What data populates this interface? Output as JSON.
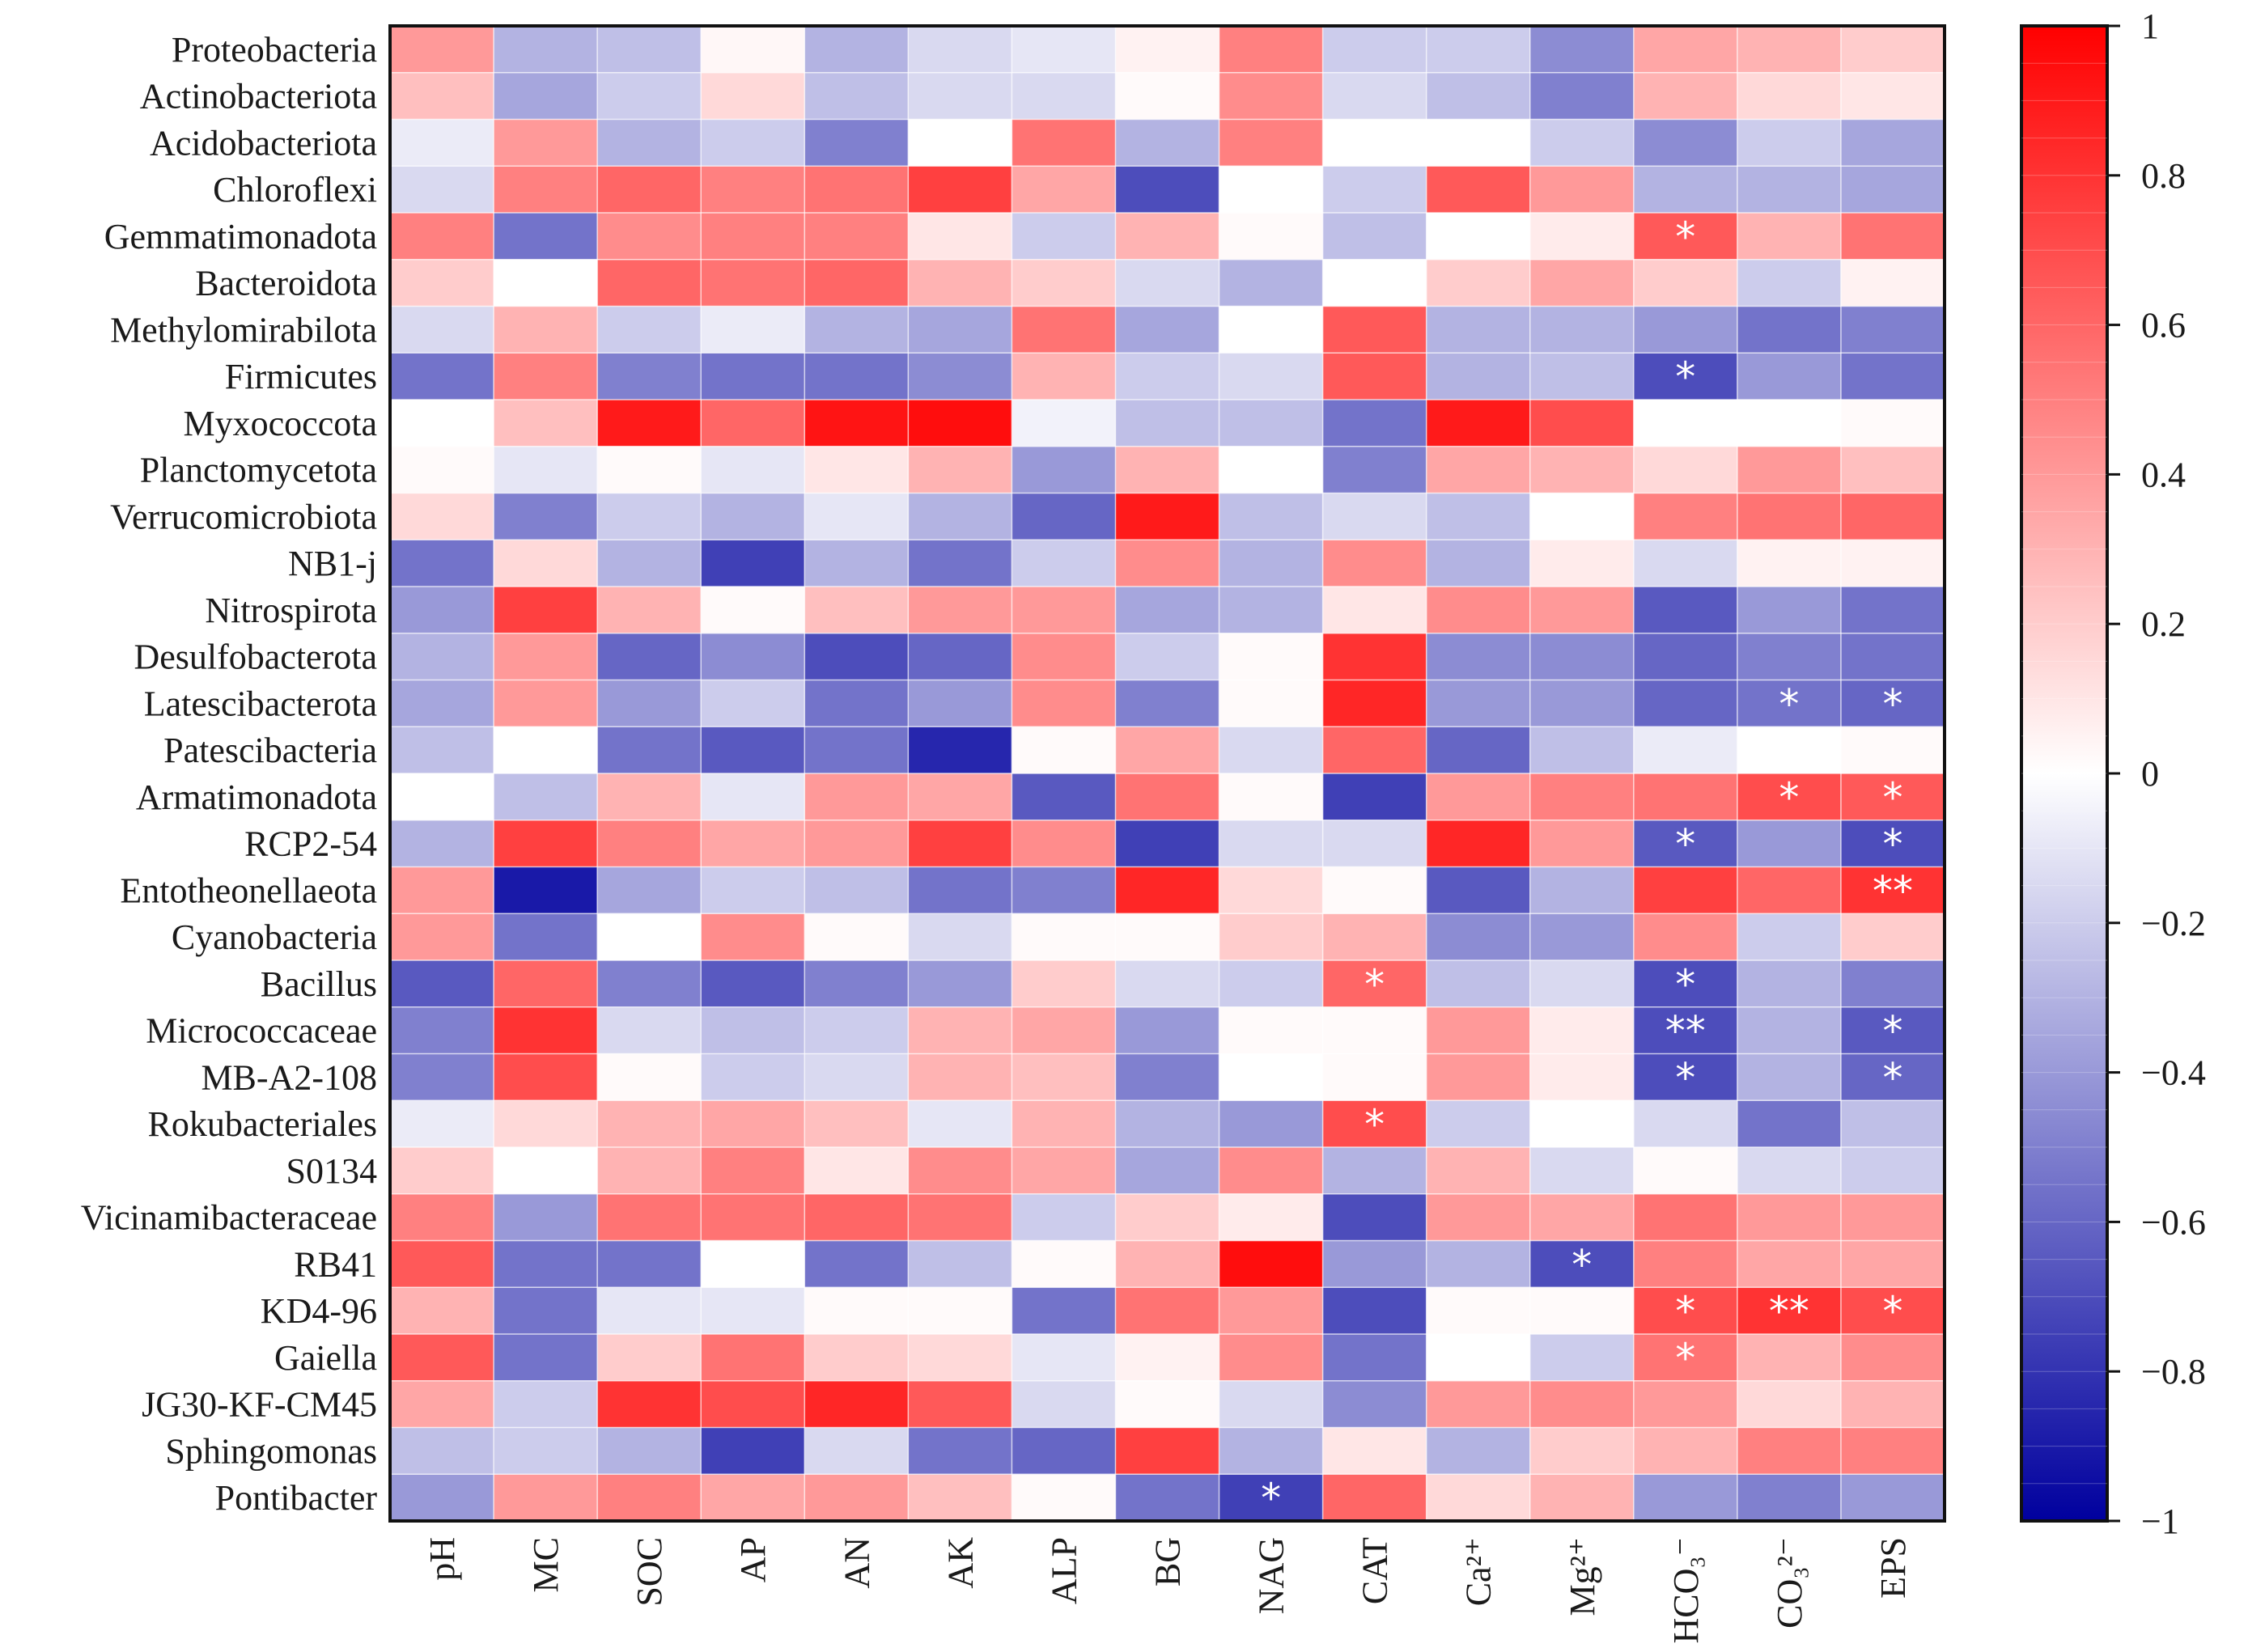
{
  "chart_data": {
    "type": "heatmap",
    "title": "",
    "rows": [
      "Proteobacteria",
      "Actinobacteriota",
      "Acidobacteriota",
      "Chloroflexi",
      "Gemmatimonadota",
      "Bacteroidota",
      "Methylomirabilota",
      "Firmicutes",
      "Myxococcota",
      "Planctomycetota",
      "Verrucomicrobiota",
      "NB1-j",
      "Nitrospirota",
      "Desulfobacterota",
      "Latescibacterota",
      "Patescibacteria",
      "Armatimonadota",
      "RCP2-54",
      "Entotheonellaeota",
      "Cyanobacteria",
      "Bacillus",
      "Micrococcaceae",
      "MB-A2-108",
      "Rokubacteriales",
      "S0134",
      "Vicinamibacteraceae",
      "RB41",
      "KD4-96",
      "Gaiella",
      "JG30-KF-CM45",
      "Sphingomonas",
      "Pontibacter"
    ],
    "columns": [
      "pH",
      "MC",
      "SOC",
      "AP",
      "AN",
      "AK",
      "ALP",
      "BG",
      "NAG",
      "CAT",
      "Ca²⁺",
      "Mg²⁺",
      "HCO₃⁻",
      "CO₃²⁻",
      "EPS"
    ],
    "values": [
      [
        0.4,
        -0.3,
        -0.25,
        0.03,
        -0.3,
        -0.15,
        -0.1,
        0.05,
        0.5,
        -0.2,
        -0.2,
        -0.45,
        0.35,
        0.3,
        0.2
      ],
      [
        0.25,
        -0.35,
        -0.2,
        0.15,
        -0.25,
        -0.15,
        -0.15,
        0.02,
        0.45,
        -0.15,
        -0.25,
        -0.5,
        0.3,
        0.15,
        0.1
      ],
      [
        -0.08,
        0.4,
        -0.3,
        -0.2,
        -0.5,
        0.0,
        0.55,
        -0.3,
        0.5,
        0.0,
        0.0,
        -0.2,
        -0.45,
        -0.2,
        -0.35
      ],
      [
        -0.15,
        0.5,
        0.6,
        0.5,
        0.55,
        0.75,
        0.35,
        -0.7,
        0.0,
        -0.2,
        0.65,
        0.4,
        -0.3,
        -0.3,
        -0.35
      ],
      [
        0.5,
        -0.55,
        0.45,
        0.5,
        0.5,
        0.1,
        -0.2,
        0.3,
        0.02,
        -0.25,
        0.0,
        0.08,
        0.65,
        0.3,
        0.55
      ],
      [
        0.2,
        0.0,
        0.6,
        0.55,
        0.6,
        0.3,
        0.2,
        -0.15,
        -0.3,
        0.0,
        0.2,
        0.35,
        0.2,
        -0.2,
        0.05
      ],
      [
        -0.15,
        0.3,
        -0.2,
        -0.08,
        -0.3,
        -0.35,
        0.55,
        -0.35,
        0.0,
        0.65,
        -0.3,
        -0.3,
        -0.4,
        -0.55,
        -0.5
      ],
      [
        -0.55,
        0.5,
        -0.5,
        -0.55,
        -0.55,
        -0.45,
        0.3,
        -0.2,
        -0.15,
        0.65,
        -0.3,
        -0.25,
        -0.7,
        -0.4,
        -0.55
      ],
      [
        0.0,
        0.25,
        0.9,
        0.6,
        0.92,
        0.95,
        -0.05,
        -0.25,
        -0.25,
        -0.55,
        0.9,
        0.7,
        0.0,
        0.0,
        0.02
      ],
      [
        0.02,
        -0.1,
        0.02,
        -0.1,
        0.1,
        0.3,
        -0.4,
        0.3,
        0.0,
        -0.5,
        0.35,
        0.3,
        0.15,
        0.4,
        0.25
      ],
      [
        0.15,
        -0.5,
        -0.2,
        -0.3,
        -0.1,
        -0.3,
        -0.6,
        0.9,
        -0.25,
        -0.15,
        -0.25,
        0.0,
        0.5,
        0.55,
        0.6
      ],
      [
        -0.55,
        0.15,
        -0.3,
        -0.75,
        -0.3,
        -0.55,
        -0.2,
        0.45,
        -0.3,
        0.45,
        -0.3,
        0.08,
        -0.15,
        0.05,
        0.05
      ],
      [
        -0.4,
        0.75,
        0.3,
        0.02,
        0.25,
        0.4,
        0.4,
        -0.35,
        -0.3,
        0.1,
        0.45,
        0.4,
        -0.65,
        -0.4,
        -0.55
      ],
      [
        -0.3,
        0.4,
        -0.6,
        -0.45,
        -0.7,
        -0.6,
        0.45,
        -0.2,
        0.02,
        0.8,
        -0.45,
        -0.45,
        -0.6,
        -0.5,
        -0.55
      ],
      [
        -0.35,
        0.4,
        -0.4,
        -0.2,
        -0.55,
        -0.4,
        0.45,
        -0.5,
        0.02,
        0.85,
        -0.4,
        -0.4,
        -0.6,
        -0.55,
        -0.6
      ],
      [
        -0.25,
        0.0,
        -0.55,
        -0.65,
        -0.55,
        -0.85,
        0.02,
        0.35,
        -0.15,
        0.6,
        -0.6,
        -0.25,
        -0.08,
        0.0,
        0.02
      ],
      [
        0.0,
        -0.25,
        0.3,
        -0.1,
        0.4,
        0.35,
        -0.65,
        0.55,
        0.02,
        -0.75,
        0.4,
        0.5,
        0.55,
        0.7,
        0.65
      ],
      [
        -0.3,
        0.75,
        0.5,
        0.35,
        0.4,
        0.75,
        0.45,
        -0.75,
        -0.15,
        -0.15,
        0.85,
        0.4,
        -0.65,
        -0.4,
        -0.7
      ],
      [
        0.4,
        -0.9,
        -0.35,
        -0.2,
        -0.25,
        -0.55,
        -0.5,
        0.85,
        0.15,
        0.02,
        -0.65,
        -0.3,
        0.75,
        0.6,
        0.8
      ],
      [
        0.4,
        -0.55,
        0.0,
        0.45,
        0.02,
        -0.15,
        0.02,
        0.02,
        0.2,
        0.3,
        -0.45,
        -0.4,
        0.45,
        -0.2,
        0.2
      ],
      [
        -0.65,
        0.6,
        -0.5,
        -0.65,
        -0.5,
        -0.4,
        0.2,
        -0.15,
        -0.2,
        0.6,
        -0.25,
        -0.15,
        -0.7,
        -0.3,
        -0.5
      ],
      [
        -0.5,
        0.8,
        -0.15,
        -0.25,
        -0.2,
        0.3,
        0.35,
        -0.4,
        0.02,
        0.02,
        0.4,
        0.08,
        -0.7,
        -0.3,
        -0.65
      ],
      [
        -0.5,
        0.7,
        0.02,
        -0.2,
        -0.15,
        0.3,
        0.25,
        -0.5,
        0.0,
        0.02,
        0.4,
        0.08,
        -0.7,
        -0.3,
        -0.6
      ],
      [
        -0.08,
        0.15,
        0.3,
        0.35,
        0.25,
        -0.1,
        0.3,
        -0.3,
        -0.4,
        0.7,
        -0.2,
        0.0,
        -0.15,
        -0.55,
        -0.25
      ],
      [
        0.2,
        0.0,
        0.3,
        0.5,
        0.1,
        0.45,
        0.35,
        -0.35,
        0.45,
        -0.3,
        0.3,
        -0.15,
        0.02,
        -0.15,
        -0.2
      ],
      [
        0.5,
        -0.4,
        0.55,
        0.55,
        0.6,
        0.55,
        -0.2,
        0.2,
        0.08,
        -0.7,
        0.4,
        0.35,
        0.55,
        0.4,
        0.4
      ],
      [
        0.65,
        -0.55,
        -0.55,
        0.0,
        -0.55,
        -0.25,
        0.02,
        0.3,
        0.95,
        -0.4,
        -0.3,
        -0.7,
        0.5,
        0.35,
        0.35
      ],
      [
        0.3,
        -0.55,
        -0.1,
        -0.1,
        0.02,
        0.02,
        -0.55,
        0.55,
        0.4,
        -0.7,
        0.02,
        0.02,
        0.7,
        0.8,
        0.7
      ],
      [
        0.65,
        -0.55,
        0.2,
        0.55,
        0.2,
        0.15,
        -0.1,
        0.05,
        0.45,
        -0.55,
        0.0,
        -0.2,
        0.55,
        0.3,
        0.45
      ],
      [
        0.35,
        -0.2,
        0.8,
        0.7,
        0.85,
        0.65,
        -0.15,
        0.02,
        -0.15,
        -0.45,
        0.4,
        0.45,
        0.4,
        0.15,
        0.3
      ],
      [
        -0.25,
        -0.2,
        -0.3,
        -0.75,
        -0.15,
        -0.55,
        -0.6,
        0.75,
        -0.3,
        0.1,
        -0.3,
        0.2,
        0.3,
        0.5,
        0.5
      ],
      [
        -0.4,
        0.4,
        0.5,
        0.35,
        0.4,
        0.25,
        0.02,
        -0.55,
        -0.75,
        0.6,
        0.15,
        0.3,
        -0.4,
        -0.5,
        -0.4
      ]
    ],
    "significance": [
      {
        "row": "Gemmatimonadota",
        "column": "HCO₃⁻",
        "mark": "*"
      },
      {
        "row": "Firmicutes",
        "column": "HCO₃⁻",
        "mark": "*"
      },
      {
        "row": "Latescibacterota",
        "column": "CO₃²⁻",
        "mark": "*"
      },
      {
        "row": "Latescibacterota",
        "column": "EPS",
        "mark": "*"
      },
      {
        "row": "Armatimonadota",
        "column": "CO₃²⁻",
        "mark": "*"
      },
      {
        "row": "Armatimonadota",
        "column": "EPS",
        "mark": "*"
      },
      {
        "row": "RCP2-54",
        "column": "HCO₃⁻",
        "mark": "*"
      },
      {
        "row": "RCP2-54",
        "column": "EPS",
        "mark": "*"
      },
      {
        "row": "Entotheonellaeota",
        "column": "EPS",
        "mark": "**"
      },
      {
        "row": "Bacillus",
        "column": "CAT",
        "mark": "*"
      },
      {
        "row": "Bacillus",
        "column": "HCO₃⁻",
        "mark": "*"
      },
      {
        "row": "Micrococcaceae",
        "column": "HCO₃⁻",
        "mark": "**"
      },
      {
        "row": "Micrococcaceae",
        "column": "EPS",
        "mark": "*"
      },
      {
        "row": "MB-A2-108",
        "column": "HCO₃⁻",
        "mark": "*"
      },
      {
        "row": "MB-A2-108",
        "column": "EPS",
        "mark": "*"
      },
      {
        "row": "Rokubacteriales",
        "column": "CAT",
        "mark": "*"
      },
      {
        "row": "RB41",
        "column": "Mg²⁺",
        "mark": "*"
      },
      {
        "row": "KD4-96",
        "column": "HCO₃⁻",
        "mark": "*"
      },
      {
        "row": "KD4-96",
        "column": "CO₃²⁻",
        "mark": "**"
      },
      {
        "row": "KD4-96",
        "column": "EPS",
        "mark": "*"
      },
      {
        "row": "Gaiella",
        "column": "HCO₃⁻",
        "mark": "*"
      },
      {
        "row": "Pontibacter",
        "column": "NAG",
        "mark": "*"
      }
    ],
    "colorbar": {
      "range": [
        -1,
        1
      ],
      "ticks": [
        1,
        0.8,
        0.6,
        0.4,
        0.2,
        0,
        -0.2,
        -0.4,
        -0.6,
        -0.8,
        -1
      ],
      "tick_labels": [
        "1",
        "0.8",
        "0.6",
        "0.4",
        "0.2",
        "0",
        "−0.2",
        "−0.4",
        "−0.6",
        "−0.8",
        "−1"
      ],
      "low_color": "#00009e",
      "mid_color": "#ffffff",
      "high_color": "#ff0000"
    }
  }
}
